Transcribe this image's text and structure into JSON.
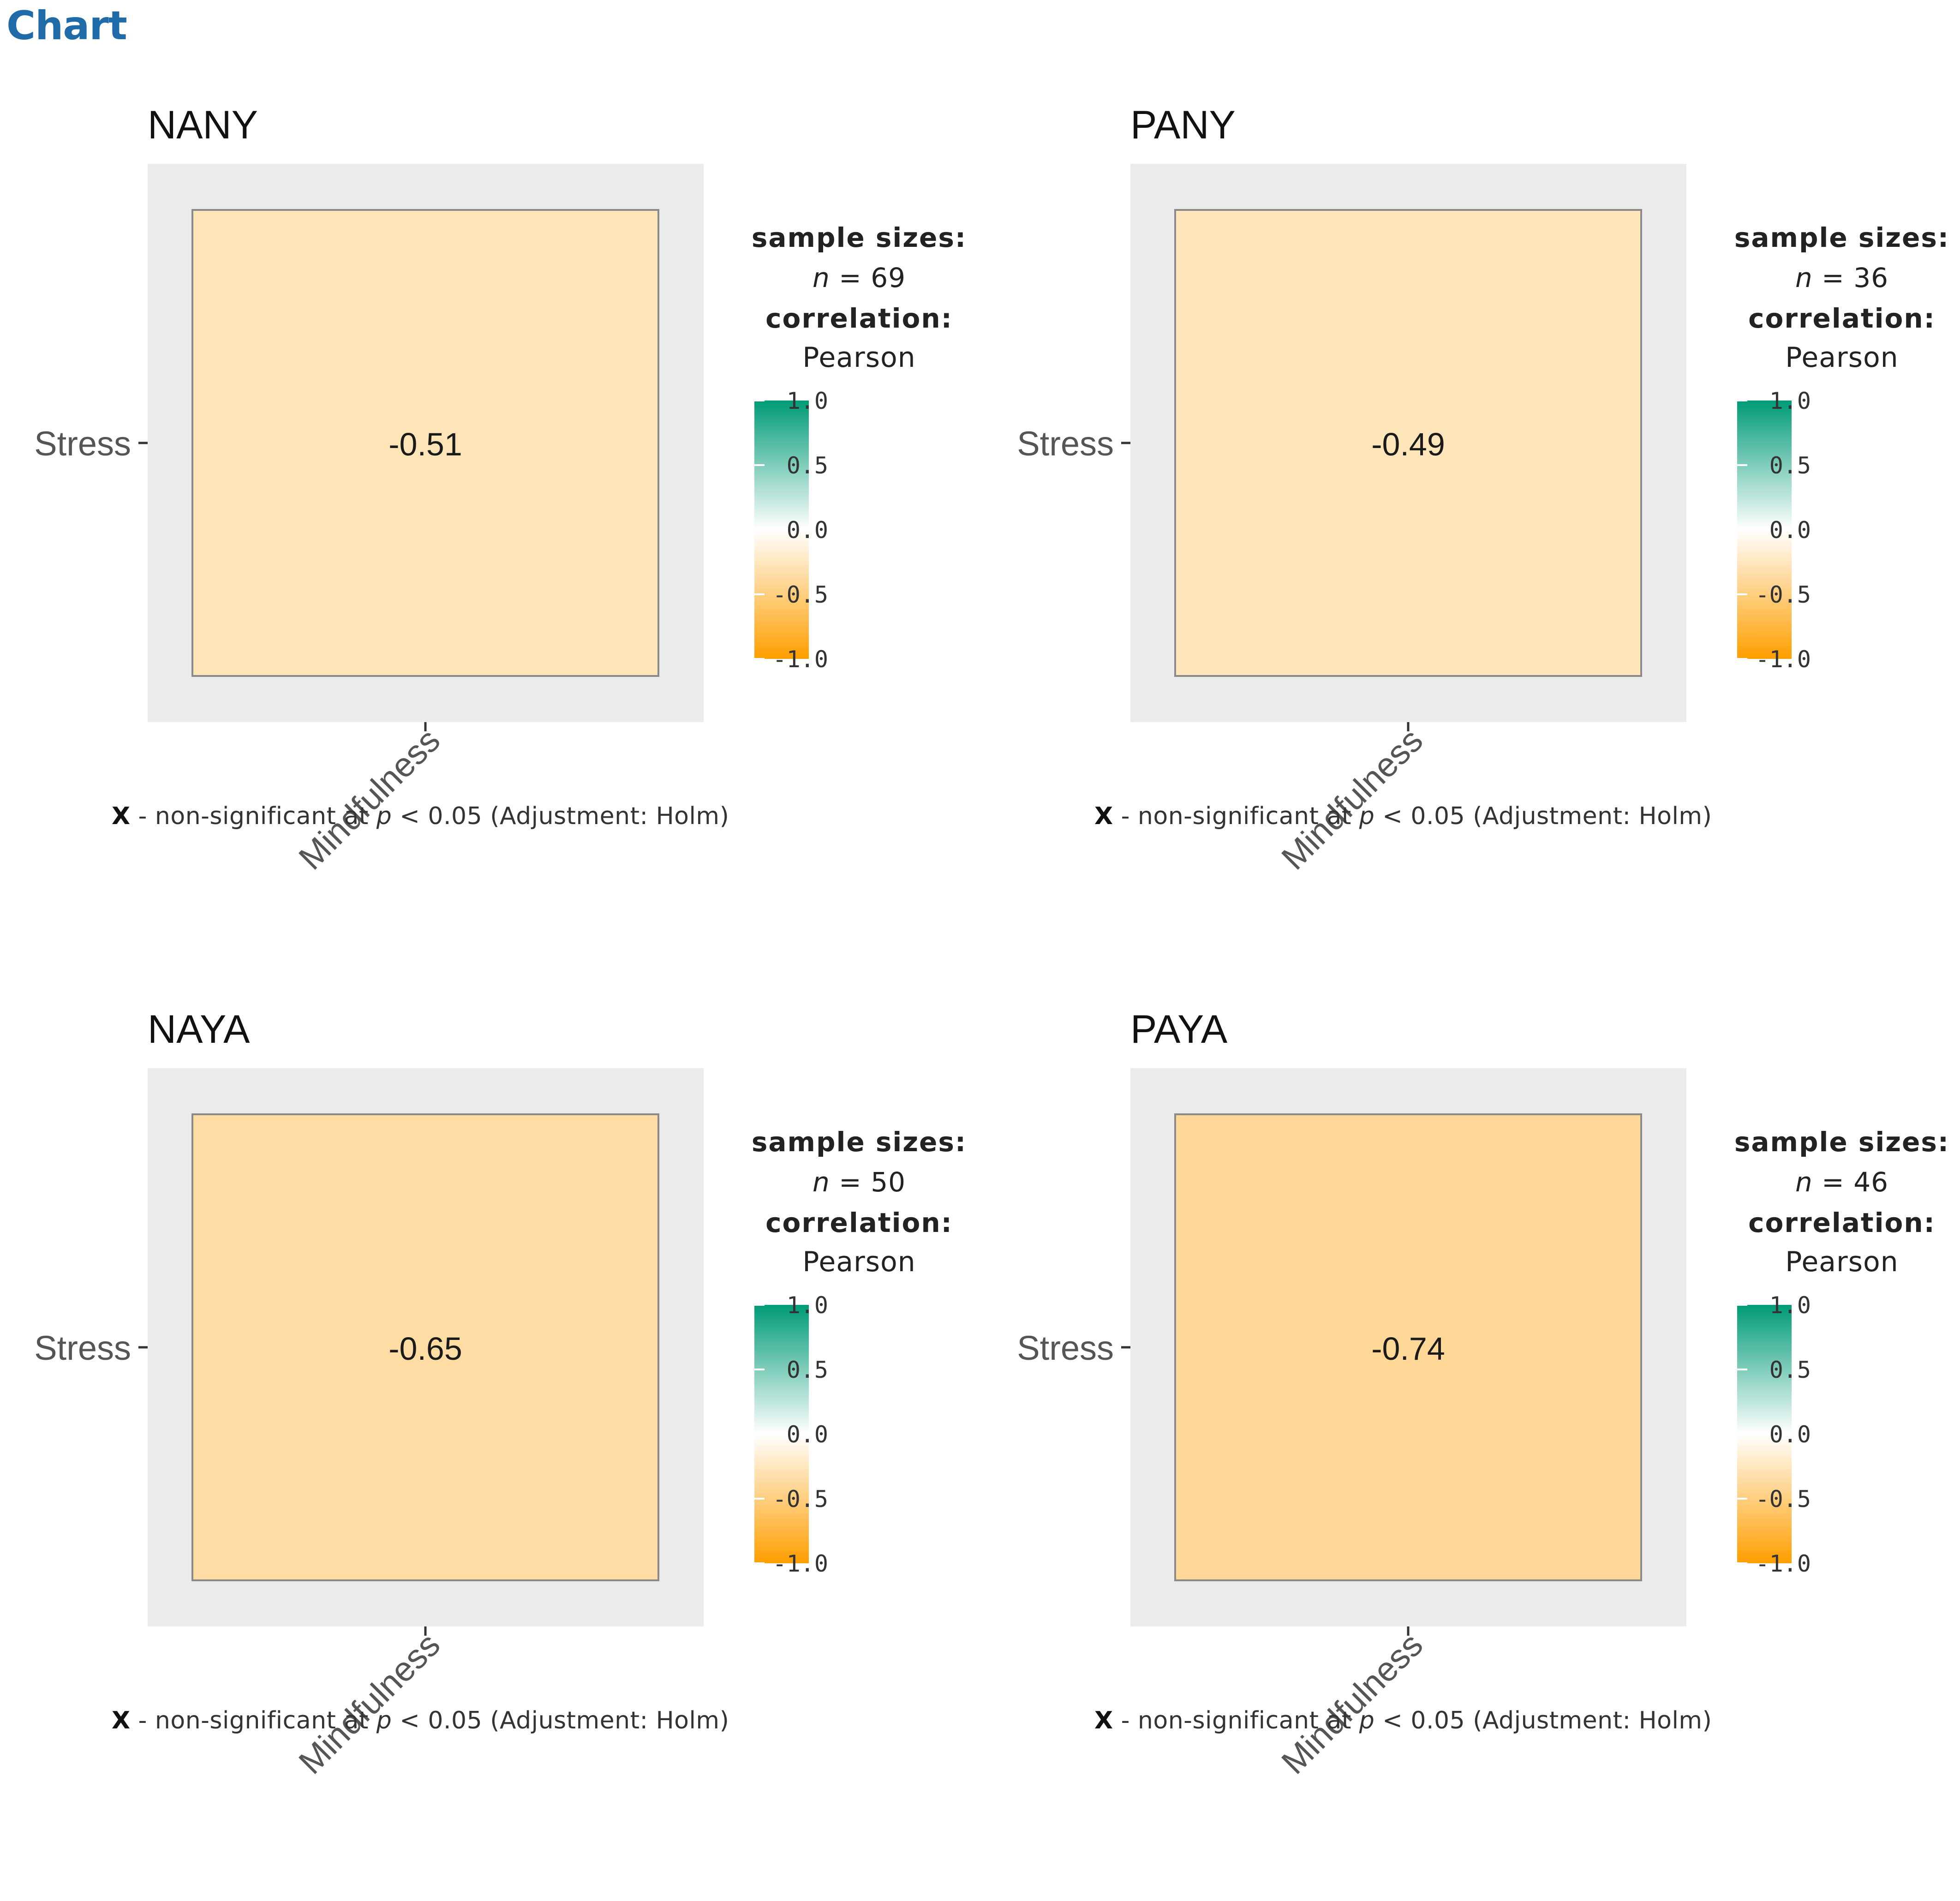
{
  "heading": "Chart",
  "colors": {
    "heading": "#1f6aa8",
    "panel_background": "#ebebeb",
    "gradient_high": "#009b77",
    "gradient_mid": "#ffffff",
    "gradient_low": "#ff9e00"
  },
  "chart_data": [
    {
      "type": "heatmap",
      "title": "NANY",
      "x_categories": [
        "Mindfulness"
      ],
      "y_categories": [
        "Stress"
      ],
      "values": [
        [
          -0.51
        ]
      ],
      "value_labels": [
        [
          "-0.51"
        ]
      ],
      "legend": {
        "sample_sizes_label": "sample sizes:",
        "n_prefix": "n",
        "n_text": " = 69",
        "n": 69,
        "correlation_label": "correlation:",
        "method": "Pearson",
        "ticks": [
          "1.0",
          "0.5",
          "0.0",
          "-0.5",
          "-1.0"
        ],
        "tick_values": [
          1.0,
          0.5,
          0.0,
          -0.5,
          -1.0
        ],
        "range": [
          -1,
          1
        ]
      },
      "caption": {
        "x": "X",
        "dash": " - ",
        "text1": "non-significant at ",
        "p": "p",
        "text2": " < 0.05 (Adjustment: Holm)"
      }
    },
    {
      "type": "heatmap",
      "title": "PANY",
      "x_categories": [
        "Mindfulness"
      ],
      "y_categories": [
        "Stress"
      ],
      "values": [
        [
          -0.49
        ]
      ],
      "value_labels": [
        [
          "-0.49"
        ]
      ],
      "legend": {
        "sample_sizes_label": "sample sizes:",
        "n_prefix": "n",
        "n_text": " = 36",
        "n": 36,
        "correlation_label": "correlation:",
        "method": "Pearson",
        "ticks": [
          "1.0",
          "0.5",
          "0.0",
          "-0.5",
          "-1.0"
        ],
        "tick_values": [
          1.0,
          0.5,
          0.0,
          -0.5,
          -1.0
        ],
        "range": [
          -1,
          1
        ]
      },
      "caption": {
        "x": "X",
        "dash": " - ",
        "text1": "non-significant at ",
        "p": "p",
        "text2": " < 0.05 (Adjustment: Holm)"
      }
    },
    {
      "type": "heatmap",
      "title": "NAYA",
      "x_categories": [
        "Mindfulness"
      ],
      "y_categories": [
        "Stress"
      ],
      "values": [
        [
          -0.65
        ]
      ],
      "value_labels": [
        [
          "-0.65"
        ]
      ],
      "legend": {
        "sample_sizes_label": "sample sizes:",
        "n_prefix": "n",
        "n_text": " = 50",
        "n": 50,
        "correlation_label": "correlation:",
        "method": "Pearson",
        "ticks": [
          "1.0",
          "0.5",
          "0.0",
          "-0.5",
          "-1.0"
        ],
        "tick_values": [
          1.0,
          0.5,
          0.0,
          -0.5,
          -1.0
        ],
        "range": [
          -1,
          1
        ]
      },
      "caption": {
        "x": "X",
        "dash": " - ",
        "text1": "non-significant at ",
        "p": "p",
        "text2": " < 0.05 (Adjustment: Holm)"
      }
    },
    {
      "type": "heatmap",
      "title": "PAYA",
      "x_categories": [
        "Mindfulness"
      ],
      "y_categories": [
        "Stress"
      ],
      "values": [
        [
          -0.74
        ]
      ],
      "value_labels": [
        [
          "-0.74"
        ]
      ],
      "legend": {
        "sample_sizes_label": "sample sizes:",
        "n_prefix": "n",
        "n_text": " = 46",
        "n": 46,
        "correlation_label": "correlation:",
        "method": "Pearson",
        "ticks": [
          "1.0",
          "0.5",
          "0.0",
          "-0.5",
          "-1.0"
        ],
        "tick_values": [
          1.0,
          0.5,
          0.0,
          -0.5,
          -1.0
        ],
        "range": [
          -1,
          1
        ]
      },
      "caption": {
        "x": "X",
        "dash": " - ",
        "text1": "non-significant at ",
        "p": "p",
        "text2": " < 0.05 (Adjustment: Holm)"
      }
    }
  ]
}
